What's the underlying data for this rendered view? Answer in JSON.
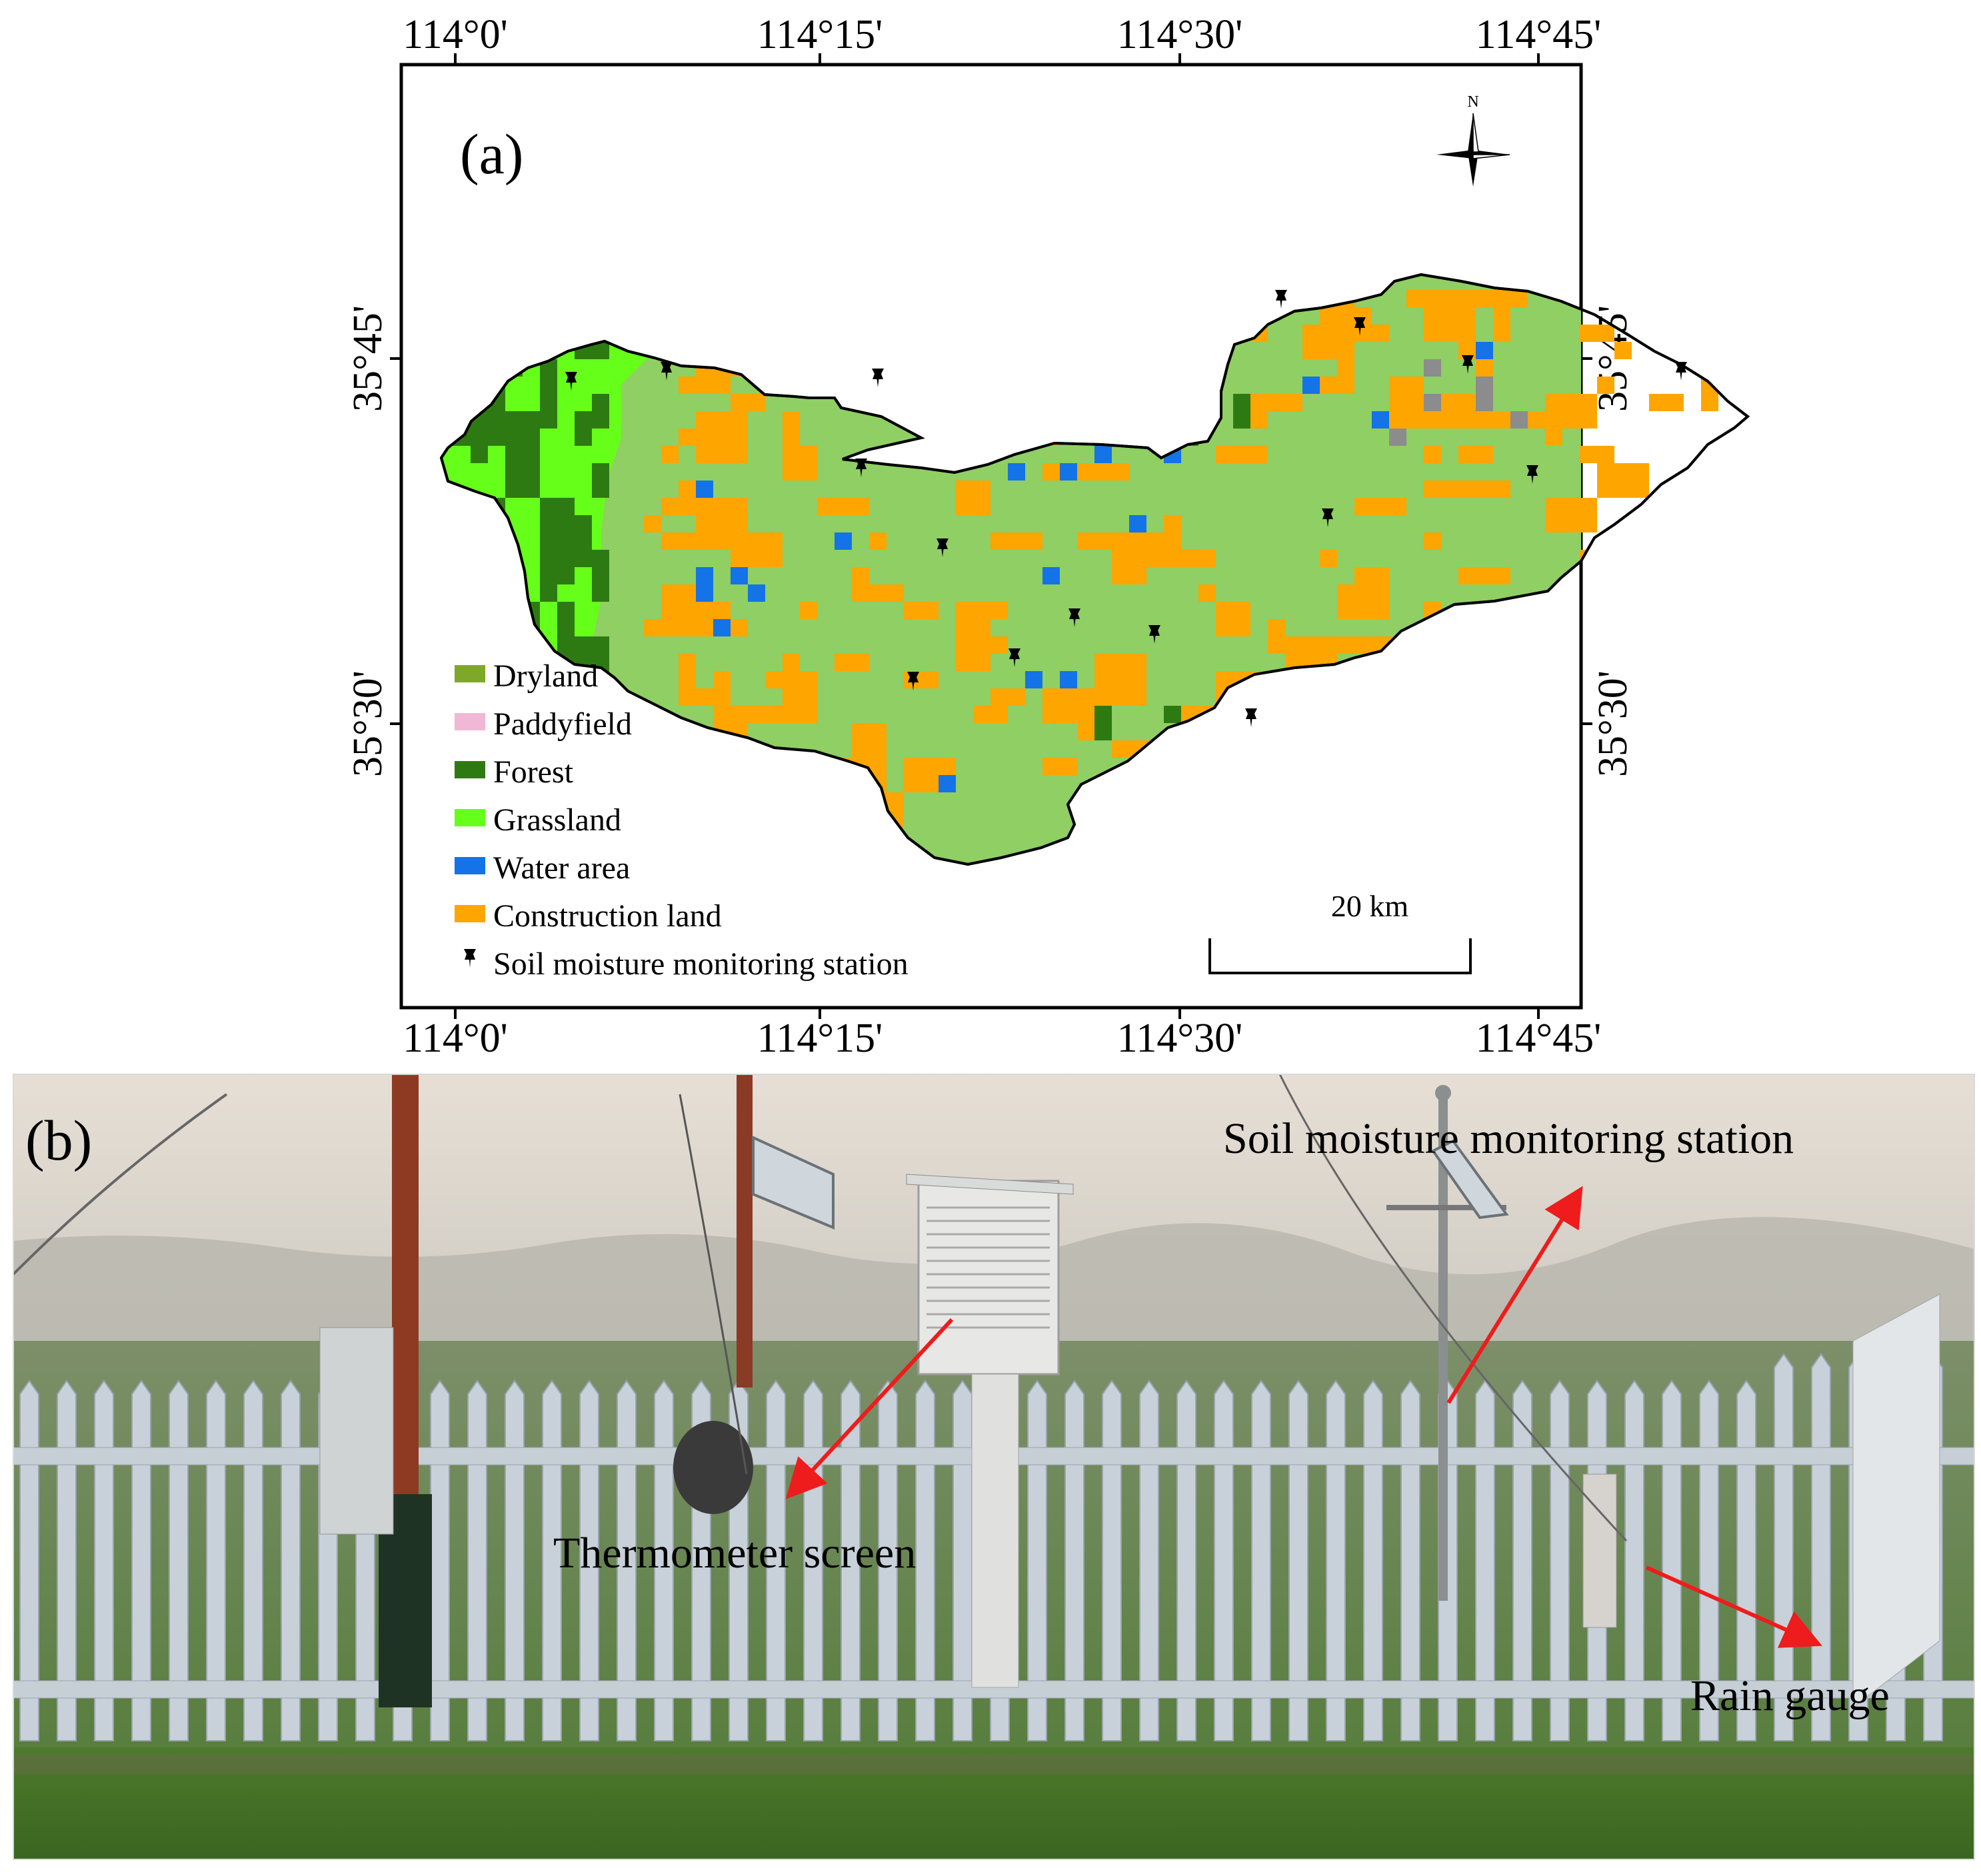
{
  "panel_a": {
    "label": "(a)",
    "lon_ticks": [
      "114°0'",
      "114°15'",
      "114°30'",
      "114°45'"
    ],
    "lat_ticks": [
      "35°45'",
      "35°30'"
    ],
    "north_label": "N",
    "scale_label": "20  km",
    "legend": [
      {
        "label": "Dryland",
        "color": "#7fa82a",
        "icon": "swatch"
      },
      {
        "label": "Paddyfield",
        "color": "#f1b8d6",
        "icon": "swatch"
      },
      {
        "label": "Forest",
        "color": "#2e7a12",
        "icon": "swatch"
      },
      {
        "label": "Grassland",
        "color": "#66ff1a",
        "icon": "swatch"
      },
      {
        "label": "Water area",
        "color": "#1473e6",
        "icon": "swatch"
      },
      {
        "label": "Construction land",
        "color": "#ffa500",
        "icon": "swatch"
      },
      {
        "label": "Soil moisture monitoring station",
        "color": "#000000",
        "icon": "pushpin-icon"
      }
    ],
    "region_color": "#8fcf63"
  },
  "panel_b": {
    "label": "(b)",
    "annotations": [
      "Soil moisture monitoring station",
      "Thermometer screen",
      "Rain gauge"
    ],
    "arrow_color": "#ee1c1c"
  }
}
